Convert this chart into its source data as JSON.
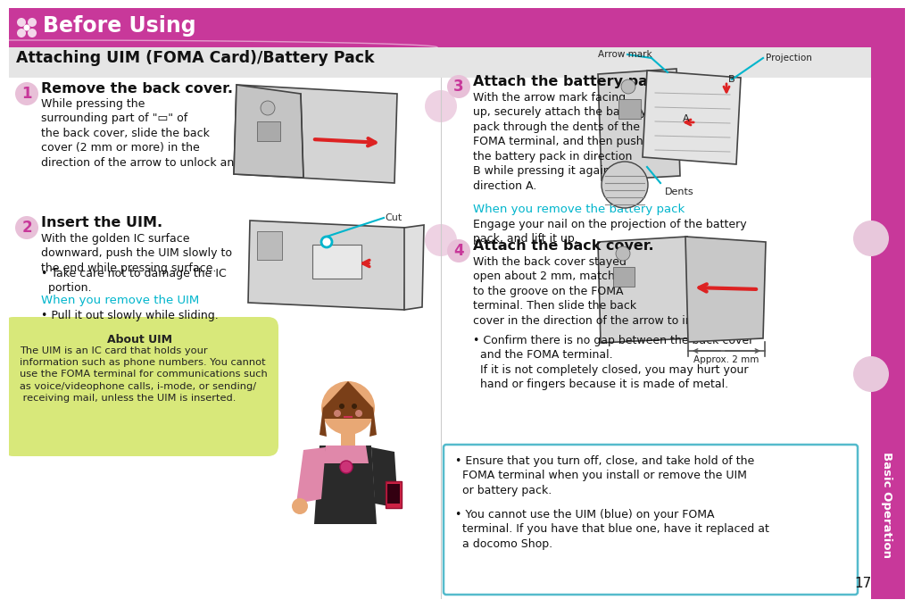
{
  "page_bg": "#ffffff",
  "header_bg": "#c8389a",
  "header_title": "Before Using",
  "section_bar_bg": "#e8e8e8",
  "section_title": "Attaching UIM (FOMA Card)/Battery Pack",
  "sidebar_bg": "#c8389a",
  "sidebar_label": "Basic Operation",
  "page_number": "17",
  "cyan": "#00b5cc",
  "magenta": "#c8389a",
  "pink_circle": "#e8b8d8",
  "green_box": "#d8e87a",
  "blue_box_border": "#55bbcc",
  "red_arrow": "#dd2222",
  "device_gray": "#d0d0d0",
  "device_dark": "#444444",
  "step1_title": "Remove the back cover.",
  "step1_text": "While pressing the\nsurrounding part of \"▭\" of\nthe back cover, slide the back\ncover (2 mm or more) in the\ndirection of the arrow to unlock and remove it.",
  "step2_title": "Insert the UIM.",
  "step2_text": "With the golden IC surface\ndownward, push the UIM slowly to\nthe end while pressing surface.",
  "step2_bullet": "• Take care not to damage the IC\n  portion.",
  "step2_sub_head": "When you remove the UIM",
  "step2_sub": "• Pull it out slowly while sliding.",
  "step3_title": "Attach the battery pack.",
  "step3_text": "With the arrow mark facing\nup, securely attach the battery\npack through the dents of the\nFOMA terminal, and then push\nthe battery pack in direction\nB while pressing it against\ndirection A.",
  "step3_sub_head": "When you remove the battery pack",
  "step3_sub": "Engage your nail on the projection of the battery\npack, and lift it up.",
  "step4_title": "Attach the back cover.",
  "step4_text": "With the back cover stayed\nopen about 2 mm, match it\nto the groove on the FOMA\nterminal. Then slide the back\ncover in the direction of the arrow to install.",
  "step4_bullet": "• Confirm there is no gap between the back cover\n  and the FOMA terminal.\n  If it is not completely closed, you may hurt your\n  hand or fingers because it is made of metal.",
  "about_title": "About UIM",
  "about_text": "The UIM is an IC card that holds your\ninformation such as phone numbers. You cannot\nuse the FOMA terminal for communications such\nas voice/videophone calls, i-mode, or sending/\n receiving mail, unless the UIM is inserted.",
  "bottom1": "• Ensure that you turn off, close, and take hold of the\n  FOMA terminal when you install or remove the UIM\n  or battery pack.",
  "bottom2": "• You cannot use the UIM (blue) on your FOMA\n  terminal. If you have that blue one, have it replaced at\n  a docomo Shop.",
  "lbl_arrow_mark": "Arrow mark",
  "lbl_projection": "Projection",
  "lbl_dents": "Dents",
  "lbl_cut": "Cut",
  "lbl_approx": "Approx. 2 mm"
}
